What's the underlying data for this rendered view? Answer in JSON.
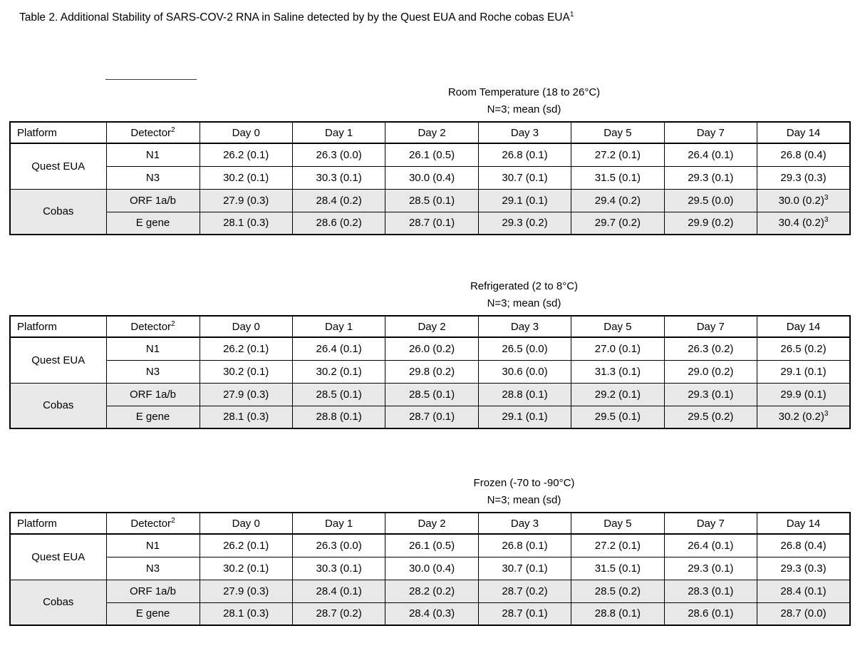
{
  "document": {
    "title": "Table 2. Additional Stability of SARS-COV-2 RNA in Saline detected by by the Quest EUA and Roche cobas EUA^1"
  },
  "table_columns": [
    "Platform",
    "Detector^2",
    "Day 0",
    "Day 1",
    "Day 2",
    "Day 3",
    "Day 5",
    "Day 7",
    "Day 14"
  ],
  "tables": [
    {
      "heading": "Room Temperature (18 to 26°C)",
      "subheading": "N=3; mean (sd)",
      "groups": [
        {
          "platform": "Quest EUA",
          "shaded": false,
          "rows": [
            {
              "detector": "N1",
              "values": [
                "26.2 (0.1)",
                "26.3 (0.0)",
                "26.1 (0.5)",
                "26.8 (0.1)",
                "27.2 (0.1)",
                "26.4 (0.1)",
                "26.8 (0.4)"
              ]
            },
            {
              "detector": "N3",
              "values": [
                "30.2 (0.1)",
                "30.3 (0.1)",
                "30.0 (0.4)",
                "30.7 (0.1)",
                "31.5 (0.1)",
                "29.3 (0.1)",
                "29.3 (0.3)"
              ]
            }
          ]
        },
        {
          "platform": "Cobas",
          "shaded": true,
          "rows": [
            {
              "detector": "ORF 1a/b",
              "values": [
                "27.9 (0.3)",
                "28.4 (0.2)",
                "28.5 (0.1)",
                "29.1 (0.1)",
                "29.4 (0.2)",
                "29.5 (0.0)",
                "30.0 (0.2)^3"
              ]
            },
            {
              "detector": "E gene",
              "values": [
                "28.1 (0.3)",
                "28.6 (0.2)",
                "28.7 (0.1)",
                "29.3 (0.2)",
                "29.7 (0.2)",
                "29.9 (0.2)",
                "30.4 (0.2)^3"
              ]
            }
          ]
        }
      ]
    },
    {
      "heading": "Refrigerated (2 to 8°C)",
      "subheading": "N=3; mean (sd)",
      "groups": [
        {
          "platform": "Quest EUA",
          "shaded": false,
          "rows": [
            {
              "detector": "N1",
              "values": [
                "26.2 (0.1)",
                "26.4 (0.1)",
                "26.0 (0.2)",
                "26.5 (0.0)",
                "27.0 (0.1)",
                "26.3 (0.2)",
                "26.5 (0.2)"
              ]
            },
            {
              "detector": "N3",
              "values": [
                "30.2 (0.1)",
                "30.2 (0.1)",
                "29.8 (0.2)",
                "30.6 (0.0)",
                "31.3 (0.1)",
                "29.0 (0.2)",
                "29.1 (0.1)"
              ]
            }
          ]
        },
        {
          "platform": "Cobas",
          "shaded": true,
          "rows": [
            {
              "detector": "ORF 1a/b",
              "values": [
                "27.9 (0.3)",
                "28.5 (0.1)",
                "28.5 (0.1)",
                "28.8 (0.1)",
                "29.2 (0.1)",
                "29.3 (0.1)",
                "29.9 (0.1)"
              ]
            },
            {
              "detector": "E gene",
              "values": [
                "28.1 (0.3)",
                "28.8 (0.1)",
                "28.7 (0.1)",
                "29.1 (0.1)",
                "29.5 (0.1)",
                "29.5 (0.2)",
                "30.2 (0.2)^3"
              ]
            }
          ]
        }
      ]
    },
    {
      "heading": "Frozen (-70 to -90°C)",
      "subheading": "N=3; mean (sd)",
      "groups": [
        {
          "platform": "Quest EUA",
          "shaded": false,
          "rows": [
            {
              "detector": "N1",
              "values": [
                "26.2 (0.1)",
                "26.3 (0.0)",
                "26.1 (0.5)",
                "26.8 (0.1)",
                "27.2 (0.1)",
                "26.4 (0.1)",
                "26.8 (0.4)"
              ]
            },
            {
              "detector": "N3",
              "values": [
                "30.2 (0.1)",
                "30.3 (0.1)",
                "30.0 (0.4)",
                "30.7 (0.1)",
                "31.5 (0.1)",
                "29.3 (0.1)",
                "29.3 (0.3)"
              ]
            }
          ]
        },
        {
          "platform": "Cobas",
          "shaded": true,
          "rows": [
            {
              "detector": "ORF 1a/b",
              "values": [
                "27.9 (0.3)",
                "28.4 (0.1)",
                "28.2 (0.2)",
                "28.7 (0.2)",
                "28.5 (0.2)",
                "28.3 (0.1)",
                "28.4 (0.1)"
              ]
            },
            {
              "detector": "E gene",
              "values": [
                "28.1 (0.3)",
                "28.7 (0.2)",
                "28.4 (0.3)",
                "28.7 (0.1)",
                "28.8 (0.1)",
                "28.6 (0.1)",
                "28.7 (0.0)"
              ]
            }
          ]
        }
      ]
    }
  ]
}
